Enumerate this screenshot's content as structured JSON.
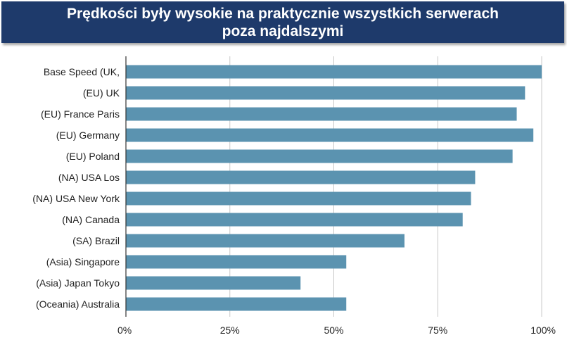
{
  "colors": {
    "banner": "#1e3a6b",
    "bar": "#5b93b0",
    "grid": "#c8c8c8",
    "axis": "#333333"
  },
  "chart_data": {
    "type": "bar",
    "orientation": "horizontal",
    "title_lines": [
      "Prędkości były wysokie na praktycznie wszystkich serwerach",
      "poza najdalszymi"
    ],
    "categories": [
      "Base Speed (UK,",
      "(EU) UK",
      "(EU) France Paris",
      "(EU) Germany",
      "(EU) Poland",
      "(NA) USA Los",
      "(NA) USA New York",
      "(NA) Canada",
      "(SA) Brazil",
      "(Asia) Singapore",
      "(Asia) Japan Tokyo",
      "(Oceania) Australia"
    ],
    "values": [
      100,
      96,
      94,
      98,
      93,
      84,
      83,
      81,
      67,
      53,
      42,
      53
    ],
    "xlim": [
      0,
      100
    ],
    "xticks": [
      0,
      25,
      50,
      75,
      100
    ],
    "xtick_labels": [
      "0%",
      "25%",
      "50%",
      "75%",
      "100%"
    ],
    "grid": true,
    "legend": "none"
  }
}
